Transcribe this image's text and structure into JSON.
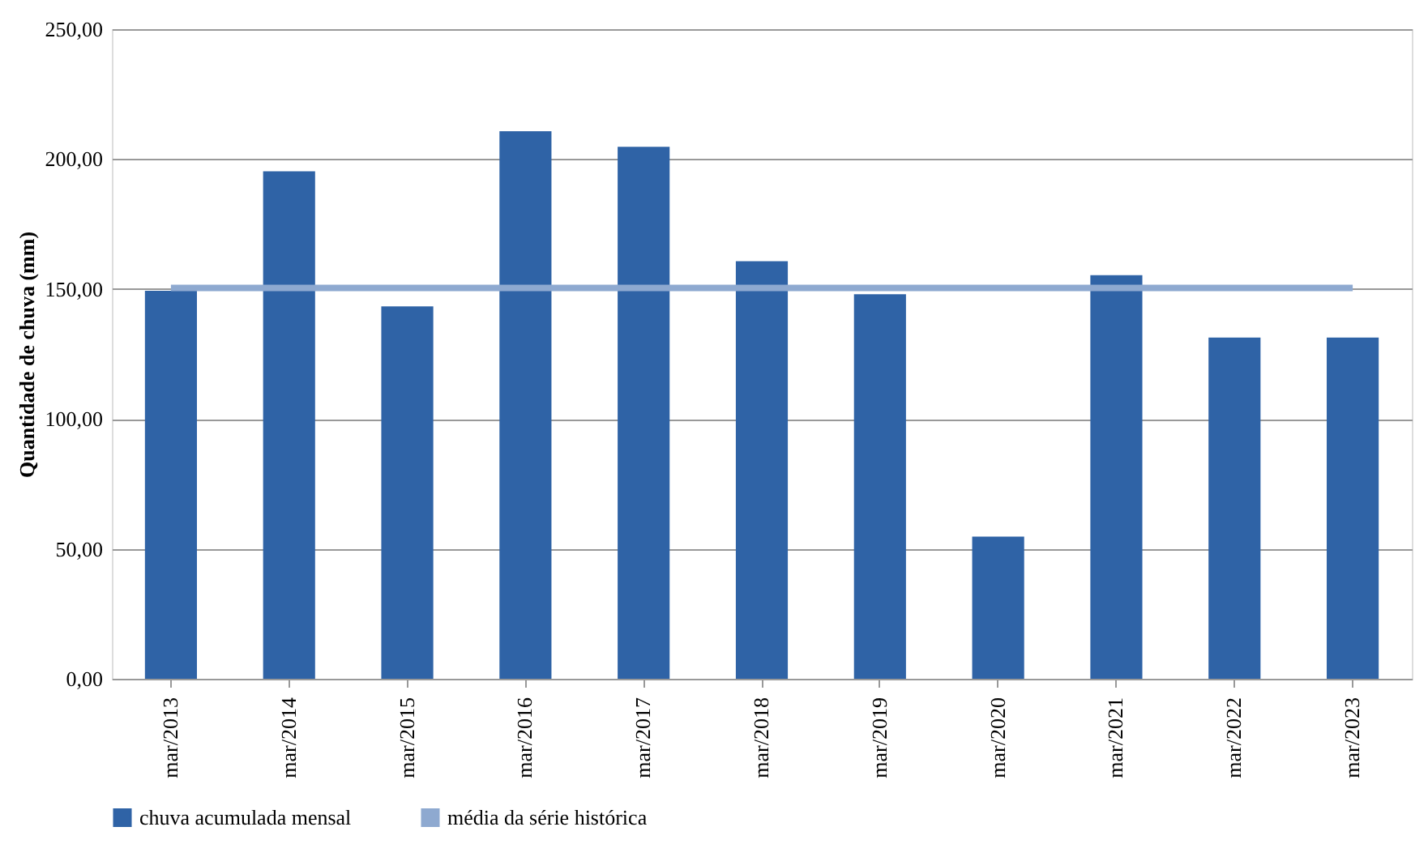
{
  "chart_data": {
    "type": "bar",
    "ylabel": "Quantidade de chuva (mm)",
    "categories": [
      "mar/2013",
      "mar/2014",
      "mar/2015",
      "mar/2016",
      "mar/2017",
      "mar/2018",
      "mar/2019",
      "mar/2020",
      "mar/2021",
      "mar/2022",
      "mar/2023"
    ],
    "series": [
      {
        "name": "chuva acumulada mensal",
        "color": "#2f63a6",
        "values": [
          149.3,
          195.3,
          143.3,
          210.7,
          204.7,
          160.7,
          148.0,
          54.7,
          155.3,
          131.3,
          131.3
        ]
      },
      {
        "name": "média da série histórica",
        "type": "line",
        "color": "#8ea9d0",
        "values": [
          150.4,
          150.4,
          150.4,
          150.4,
          150.4,
          150.4,
          150.4,
          150.4,
          150.4,
          150.4,
          150.4
        ]
      }
    ],
    "ylim": [
      0,
      250
    ],
    "yticks": [
      {
        "value": 0,
        "label": "0,00"
      },
      {
        "value": 50,
        "label": "50,00"
      },
      {
        "value": 100,
        "label": "100,00"
      },
      {
        "value": 150,
        "label": "150,00"
      },
      {
        "value": 200,
        "label": "200,00"
      },
      {
        "value": 250,
        "label": "250,00"
      }
    ],
    "grid": "y",
    "legend": "bottom"
  }
}
